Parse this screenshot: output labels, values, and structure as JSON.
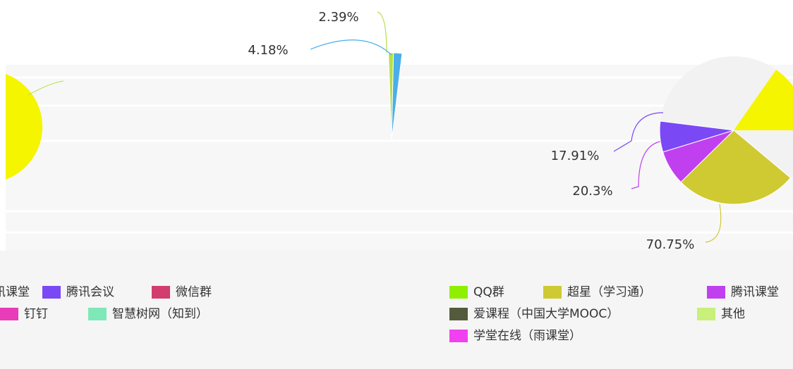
{
  "chart_data": [
    {
      "type": "pie",
      "values": [
        2.39,
        4.18
      ],
      "value_labels": [
        "2.39%",
        "4.18%"
      ],
      "colors": [
        "#b5e04a",
        "#4aaeea"
      ],
      "legend": [
        {
          "name": "腾讯课堂",
          "color": "#c040f0"
        },
        {
          "name": "腾讯会议",
          "color": "#7b48f5"
        },
        {
          "name": "微信群",
          "color": "#d23c6e"
        },
        {
          "name": "钉钉",
          "color": "#e83cb8"
        },
        {
          "name": "智慧树网（知到）",
          "color": "#7fe8b8"
        }
      ]
    },
    {
      "type": "pie",
      "categories": [
        "超星（学习通）",
        "腾讯课堂",
        "腾讯会议"
      ],
      "values": [
        70.75,
        20.3,
        17.91
      ],
      "value_labels": [
        "70.75%",
        "20.3%",
        "17.91%"
      ],
      "colors": [
        "#cfc932",
        "#c040f0",
        "#7b48f5"
      ],
      "legend": [
        {
          "name": "QQ群",
          "color": "#8ef000"
        },
        {
          "name": "超星（学习通）",
          "color": "#cfc932"
        },
        {
          "name": "腾讯课堂",
          "color": "#c040f0"
        },
        {
          "name": "爱课程（中国大学MOOC）",
          "color": "#545a3c"
        },
        {
          "name": "其他",
          "color": "#c8f07a"
        },
        {
          "name": "学堂在线（雨课堂）",
          "color": "#f040f0"
        }
      ]
    }
  ]
}
